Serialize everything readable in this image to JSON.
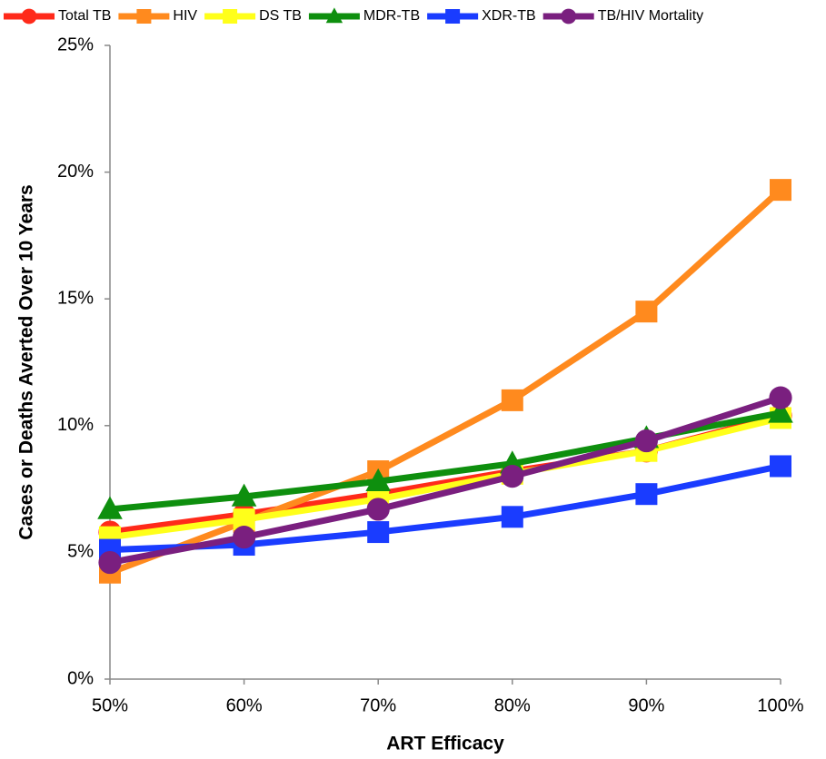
{
  "chart_data": {
    "type": "line",
    "x_label": "ART Efficacy",
    "y_label": "Cases or Deaths Averted Over 10 Years",
    "categories": [
      "50%",
      "60%",
      "70%",
      "80%",
      "90%",
      "100%"
    ],
    "ylim": [
      0,
      25
    ],
    "yticks": [
      {
        "value": 0,
        "label": "0%"
      },
      {
        "value": 5,
        "label": "5%"
      },
      {
        "value": 10,
        "label": "10%"
      },
      {
        "value": 15,
        "label": "15%"
      },
      {
        "value": 20,
        "label": "20%"
      },
      {
        "value": 25,
        "label": "25%"
      }
    ],
    "grid": false,
    "legend": "top",
    "series": [
      {
        "name": "Total TB",
        "color": "#ff2a1a",
        "marker": "circle",
        "values": [
          5.8,
          6.5,
          7.3,
          8.2,
          9.0,
          10.4
        ]
      },
      {
        "name": "HIV",
        "color": "#ff8a1e",
        "marker": "square",
        "values": [
          4.2,
          6.2,
          8.2,
          11.0,
          14.5,
          19.3
        ]
      },
      {
        "name": "DS TB",
        "color": "#ffff1a",
        "marker": "square",
        "values": [
          5.6,
          6.3,
          7.1,
          8.1,
          9.0,
          10.3
        ]
      },
      {
        "name": "MDR-TB",
        "color": "#0e8f0e",
        "marker": "triangle",
        "values": [
          6.7,
          7.2,
          7.8,
          8.5,
          9.5,
          10.5
        ]
      },
      {
        "name": "XDR-TB",
        "color": "#1a3cff",
        "marker": "square",
        "values": [
          5.1,
          5.3,
          5.8,
          6.4,
          7.3,
          8.4
        ]
      },
      {
        "name": "TB/HIV Mortality",
        "color": "#7a1f7f",
        "marker": "circle",
        "values": [
          4.6,
          5.6,
          6.7,
          8.0,
          9.4,
          11.1
        ]
      }
    ]
  }
}
